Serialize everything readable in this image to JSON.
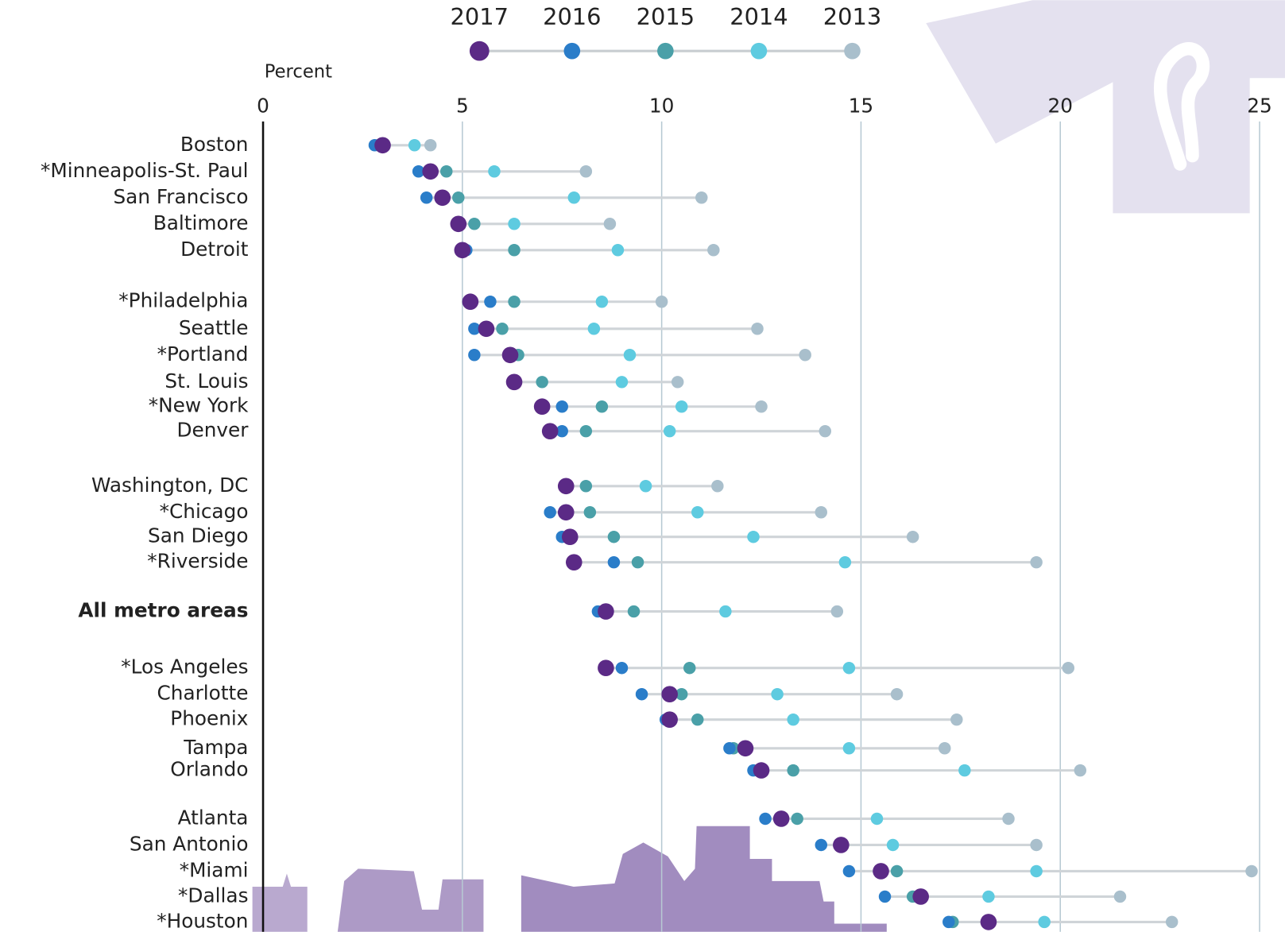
{
  "chart_data": {
    "type": "dot",
    "y_axis_label": "Percent",
    "xlim": [
      0,
      25
    ],
    "xticks": [
      0,
      5,
      10,
      15,
      20,
      25
    ],
    "grid": true,
    "categories": [
      "Boston",
      "*Minneapolis-St. Paul",
      "San Francisco",
      "Baltimore",
      "Detroit",
      "*Philadelphia",
      "Seattle",
      "*Portland",
      "St. Louis",
      "*New York",
      "Denver",
      "Washington, DC",
      "*Chicago",
      "San Diego",
      "*Riverside",
      "All metro areas",
      "*Los Angeles",
      "Charlotte",
      "Phoenix",
      "Tampa",
      "Orlando",
      "Atlanta",
      "San Antonio",
      "*Miami",
      "*Dallas",
      "*Houston"
    ],
    "series": [
      {
        "name": "2017",
        "color": "#5b2a86",
        "values": [
          3.0,
          4.2,
          4.5,
          4.9,
          5.0,
          5.2,
          5.6,
          6.2,
          6.3,
          7.0,
          7.2,
          7.6,
          7.6,
          7.7,
          7.8,
          8.6,
          8.6,
          10.2,
          10.2,
          12.1,
          12.5,
          13.0,
          14.5,
          15.5,
          16.5,
          18.2
        ]
      },
      {
        "name": "2016",
        "color": "#2a7dc9",
        "values": [
          2.8,
          3.9,
          4.1,
          4.9,
          5.1,
          5.7,
          5.3,
          5.3,
          6.3,
          7.5,
          7.5,
          7.6,
          7.2,
          7.5,
          8.8,
          8.4,
          9.0,
          9.5,
          10.1,
          11.7,
          12.3,
          12.6,
          14.0,
          14.7,
          15.6,
          17.2
        ]
      },
      {
        "name": "2015",
        "color": "#4aa0a8",
        "values": [
          2.9,
          4.6,
          4.9,
          5.3,
          6.3,
          6.3,
          6.0,
          6.4,
          7.0,
          8.5,
          8.1,
          8.1,
          8.2,
          8.8,
          9.4,
          9.3,
          10.7,
          10.5,
          10.9,
          11.8,
          13.3,
          13.4,
          14.5,
          15.9,
          16.3,
          17.3
        ]
      },
      {
        "name": "2014",
        "color": "#5ecbe0",
        "values": [
          3.8,
          5.8,
          7.8,
          6.3,
          8.9,
          8.5,
          8.3,
          9.2,
          9.0,
          10.5,
          10.2,
          9.6,
          10.9,
          12.3,
          14.6,
          11.6,
          14.7,
          12.9,
          13.3,
          14.7,
          17.6,
          15.4,
          15.8,
          19.4,
          18.2,
          19.6
        ]
      },
      {
        "name": "2013",
        "color": "#a9bfcc",
        "values": [
          4.2,
          8.1,
          11.0,
          8.7,
          11.3,
          10.0,
          12.4,
          13.6,
          10.4,
          12.5,
          14.1,
          11.4,
          14.0,
          16.3,
          19.4,
          14.4,
          20.2,
          15.9,
          17.4,
          17.1,
          20.5,
          18.7,
          19.4,
          24.8,
          21.5,
          22.8
        ]
      }
    ]
  }
}
